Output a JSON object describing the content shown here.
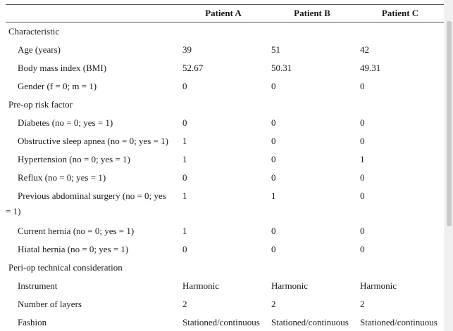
{
  "header": {
    "col_a": "Patient A",
    "col_b": "Patient B",
    "col_c": "Patient C"
  },
  "sections": {
    "characteristic": "Characteristic",
    "preop": "Pre-op risk factor",
    "periop": "Peri-op technical consideration"
  },
  "rows": {
    "age": {
      "label": "Age (years)",
      "a": "39",
      "b": "51",
      "c": "42"
    },
    "bmi": {
      "label": "Body mass index (BMI)",
      "a": "52.67",
      "b": "50.31",
      "c": "49.31"
    },
    "gender": {
      "label": "Gender (f = 0; m = 1)",
      "a": "0",
      "b": "0",
      "c": "0"
    },
    "diabetes": {
      "label": "Diabetes (no = 0; yes = 1)",
      "a": "0",
      "b": "0",
      "c": "0"
    },
    "osa": {
      "label": "Obstructive sleep apnea (no = 0; yes = 1)",
      "a": "1",
      "b": "0",
      "c": "0"
    },
    "hypertension": {
      "label": "Hypertension (no = 0; yes = 1)",
      "a": "1",
      "b": "0",
      "c": "1"
    },
    "reflux": {
      "label": "Reflux (no = 0; yes = 1)",
      "a": "0",
      "b": "0",
      "c": "0"
    },
    "prev_surgery": {
      "label_line1": "Previous abdominal surgery (no = 0; yes",
      "label_line2": "= 1)",
      "a": "1",
      "b": "1",
      "c": "0"
    },
    "current_hernia": {
      "label": "Current hernia (no = 0; yes = 1)",
      "a": "1",
      "b": "0",
      "c": "0"
    },
    "hiatal_hernia": {
      "label": "Hiatal hernia (no = 0; yes = 1)",
      "a": "0",
      "b": "0",
      "c": "0"
    },
    "instrument": {
      "label": "Instrument",
      "a": "Harmonic",
      "b": "Harmonic",
      "c": "Harmonic"
    },
    "layers": {
      "label": "Number of layers",
      "a": "2",
      "b": "2",
      "c": "2"
    },
    "fashion": {
      "label": "Fashion",
      "a": "Stationed/continuous",
      "b": "Stationed/continuous",
      "c": "Stationed/continuous"
    }
  }
}
